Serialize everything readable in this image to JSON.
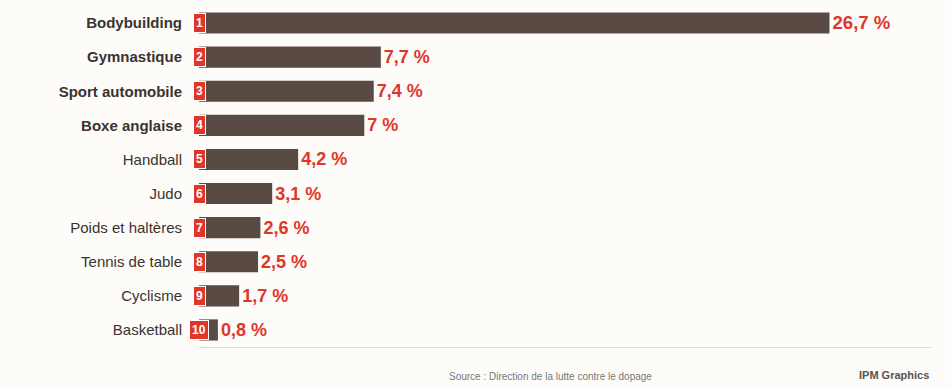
{
  "chart_data": {
    "type": "bar",
    "orientation": "horizontal",
    "categories": [
      "Bodybuilding",
      "Gymnastique",
      "Sport automobile",
      "Boxe anglaise",
      "Handball",
      "Judo",
      "Poids et haltères",
      "Tennis de table",
      "Cyclisme",
      "Basketball"
    ],
    "ranks": [
      1,
      2,
      3,
      4,
      5,
      6,
      7,
      8,
      9,
      10
    ],
    "values": [
      26.7,
      7.7,
      7.4,
      7,
      4.2,
      3.1,
      2.6,
      2.5,
      1.7,
      0.8
    ],
    "value_labels": [
      "26,7 %",
      "7,7 %",
      "7,4 %",
      "7 %",
      "4,2 %",
      "3,1 %",
      "2,6 %",
      "2,5 %",
      "1,7 %",
      "0,8 %"
    ],
    "data_labels": true,
    "color": "#5a4a44",
    "xlim": [
      0,
      31
    ],
    "tick_labels": "y",
    "grid": false,
    "source": "Source : Direction de la lutte contre le dopage",
    "credit": "IPM Graphics"
  }
}
